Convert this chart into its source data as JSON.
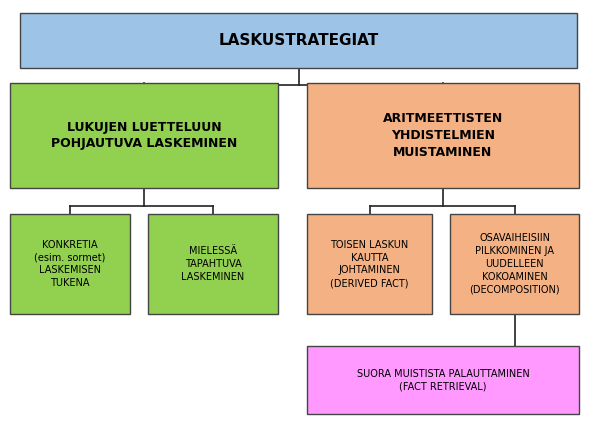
{
  "title": "LASKUSTRATEGIAT",
  "title_box_color": "#9DC3E6",
  "title_box_edge": "#444444",
  "box1_text": "LUKUJEN LUETTELUUN\nPOHJAUTUVA LASKEMINEN",
  "box1_color": "#92D050",
  "box1_edge": "#444444",
  "box2_text": "ARITMEETTISTEN\nYHDISTELMIEN\nMUISTAMINEN",
  "box2_color": "#F4B183",
  "box2_edge": "#444444",
  "box_a_text": "KONKRETIA\n(esim. sormet)\nLASKEMISEN\nTUKENA",
  "box_a_color": "#92D050",
  "box_a_edge": "#444444",
  "box_b_text": "MIELESSÄ\nTAPAHTUVA\nLASKEMINEN",
  "box_b_color": "#92D050",
  "box_b_edge": "#444444",
  "box_c_text": "TOISEN LASKUN\nKAUTTA\nJOHTAMINEN\n(DERIVED FACT)",
  "box_c_color": "#F4B183",
  "box_c_edge": "#444444",
  "box_d_text": "OSAVAIHEISIIN\nPILKKOMINEN JA\nUUDELLEEN\nKOKOAMINEN\n(DECOMPOSITION)",
  "box_d_color": "#F4B183",
  "box_d_edge": "#444444",
  "box_e_text": "SUORA MUISTISTA PALAUTTAMINEN\n(FACT RETRIEVAL)",
  "box_e_color": "#FF99FF",
  "box_e_edge": "#444444",
  "line_color": "#222222",
  "bg_color": "#ffffff",
  "text_color": "#000000",
  "fontsize_title": 11,
  "fontsize_main": 9,
  "fontsize_sub": 7
}
